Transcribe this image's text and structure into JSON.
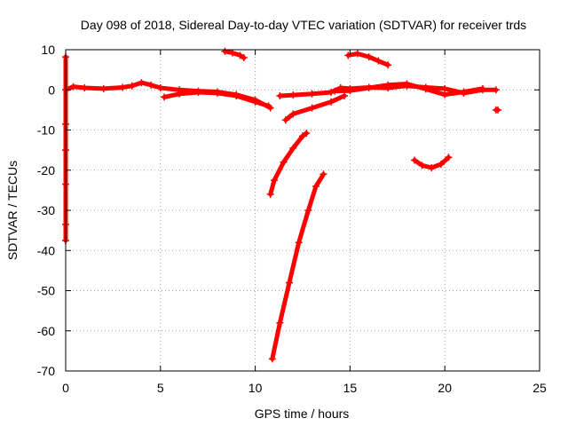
{
  "chart_data": {
    "type": "scatter",
    "title": "Day 098 of 2018, Sidereal Day-to-day VTEC variation (SDTVAR) for receiver trds",
    "xlabel": "GPS time / hours",
    "ylabel": "SDTVAR / TECUs",
    "xlim": [
      0,
      25
    ],
    "ylim": [
      -70,
      10
    ],
    "xticks": [
      0,
      5,
      10,
      15,
      20,
      25
    ],
    "yticks": [
      -70,
      -60,
      -50,
      -40,
      -30,
      -20,
      -10,
      0,
      10
    ],
    "grid": true,
    "marker_color": "#ff0000",
    "series": [
      {
        "values": [
          [
            0.0,
            0.0
          ],
          [
            0.4,
            0.8
          ],
          [
            1.0,
            0.5
          ],
          [
            2.0,
            0.3
          ],
          [
            3.0,
            0.6
          ],
          [
            3.5,
            1.0
          ],
          [
            4.0,
            1.8
          ],
          [
            4.5,
            1.2
          ],
          [
            5.0,
            0.5
          ],
          [
            6.0,
            0.0
          ],
          [
            7.0,
            -0.3
          ],
          [
            8.0,
            -0.5
          ],
          [
            9.0,
            -1.2
          ],
          [
            10.0,
            -2.5
          ],
          [
            10.8,
            -4.5
          ]
        ]
      },
      {
        "values": [
          [
            5.2,
            -1.8
          ],
          [
            6.0,
            -1.0
          ],
          [
            7.0,
            -0.6
          ],
          [
            8.0,
            -0.8
          ],
          [
            9.0,
            -1.5
          ],
          [
            10.0,
            -3.0
          ],
          [
            10.7,
            -4.0
          ]
        ]
      },
      {
        "values": [
          [
            8.4,
            9.6
          ],
          [
            8.8,
            9.2
          ],
          [
            9.2,
            8.6
          ],
          [
            9.4,
            8.0
          ]
        ]
      },
      {
        "values": [
          [
            11.3,
            -1.5
          ],
          [
            12.0,
            -1.3
          ],
          [
            13.0,
            -1.0
          ],
          [
            14.0,
            -0.6
          ],
          [
            14.5,
            0.5
          ],
          [
            15.0,
            0.3
          ],
          [
            16.0,
            0.6
          ],
          [
            17.0,
            0.5
          ],
          [
            18.0,
            1.0
          ],
          [
            19.0,
            0.6
          ],
          [
            20.0,
            0.3
          ],
          [
            21.0,
            -0.8
          ],
          [
            22.0,
            0.0
          ],
          [
            22.7,
            0.0
          ]
        ]
      },
      {
        "values": [
          [
            14.2,
            -0.3
          ],
          [
            15.0,
            -0.2
          ],
          [
            16.0,
            0.5
          ],
          [
            17.0,
            1.2
          ],
          [
            18.0,
            1.5
          ],
          [
            19.0,
            0.2
          ],
          [
            20.0,
            -1.2
          ],
          [
            21.0,
            -0.5
          ],
          [
            22.0,
            0.3
          ]
        ]
      },
      {
        "values": [
          [
            11.6,
            -7.5
          ],
          [
            12.0,
            -6.0
          ],
          [
            13.0,
            -4.5
          ],
          [
            14.0,
            -3.0
          ],
          [
            14.7,
            -1.5
          ]
        ]
      },
      {
        "values": [
          [
            14.9,
            8.6
          ],
          [
            15.4,
            9.0
          ],
          [
            16.0,
            8.2
          ],
          [
            16.5,
            7.2
          ],
          [
            17.0,
            6.2
          ]
        ]
      },
      {
        "values": [
          [
            10.8,
            -26.0
          ],
          [
            11.0,
            -22.5
          ],
          [
            11.5,
            -18.0
          ],
          [
            12.0,
            -14.5
          ],
          [
            12.5,
            -11.5
          ],
          [
            12.7,
            -10.8
          ]
        ]
      },
      {
        "values": [
          [
            10.9,
            -67.0
          ],
          [
            11.3,
            -58.0
          ],
          [
            11.8,
            -48.0
          ],
          [
            12.3,
            -38.0
          ],
          [
            12.8,
            -30.0
          ],
          [
            13.2,
            -24.0
          ],
          [
            13.6,
            -21.0
          ]
        ]
      },
      {
        "values": [
          [
            18.4,
            -17.5
          ],
          [
            18.8,
            -18.8
          ],
          [
            19.3,
            -19.4
          ],
          [
            19.8,
            -18.5
          ],
          [
            20.2,
            -16.8
          ]
        ]
      },
      {
        "values": [
          [
            22.7,
            -5.0
          ],
          [
            22.8,
            -5.0
          ]
        ]
      },
      {
        "values": [
          [
            0.0,
            8.2
          ],
          [
            0.0,
            -8.5
          ],
          [
            0.0,
            -15.0
          ],
          [
            0.0,
            -23.5
          ],
          [
            0.0,
            -33.5
          ],
          [
            0.0,
            -37.5
          ]
        ]
      }
    ]
  }
}
